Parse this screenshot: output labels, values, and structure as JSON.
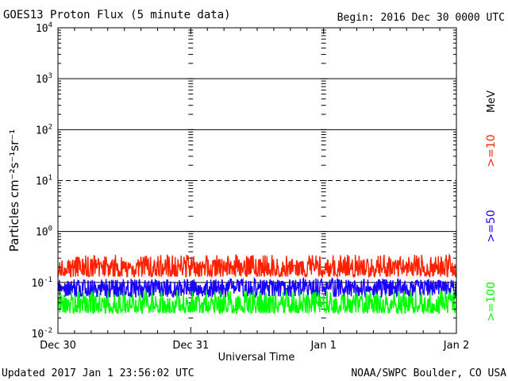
{
  "header": {
    "title": "GOES13 Proton Flux (5 minute data)",
    "begin": "Begin: 2016 Dec 30 0000 UTC"
  },
  "footer": {
    "updated": "Updated 2017 Jan  1 23:56:02 UTC",
    "credit": "NOAA/SWPC Boulder, CO USA"
  },
  "chart_data": {
    "type": "line",
    "title": "GOES13 Proton Flux (5 minute data)",
    "xlabel": "Universal Time",
    "ylabel": "Particles cm⁻²s⁻¹sr⁻¹",
    "y_scale": "log",
    "ylim": [
      0.01,
      10000
    ],
    "xlim": [
      "2016-12-30 00:00",
      "2017-01-02 00:00"
    ],
    "x_ticks": [
      "Dec 30",
      "Dec 31",
      "Jan 1",
      "Jan 2"
    ],
    "y_ticks": [
      {
        "base": "10",
        "exp": "-2",
        "value": 0.01
      },
      {
        "base": "10",
        "exp": "-1",
        "value": 0.1
      },
      {
        "base": "10",
        "exp": "0",
        "value": 1
      },
      {
        "base": "10",
        "exp": "1",
        "value": 10
      },
      {
        "base": "10",
        "exp": "2",
        "value": 100
      },
      {
        "base": "10",
        "exp": "3",
        "value": 1000
      },
      {
        "base": "10",
        "exp": "4",
        "value": 10000
      }
    ],
    "threshold_lines": [
      {
        "value": 10,
        "style": "dashed"
      },
      {
        "value": 1,
        "style": "solid"
      },
      {
        "value": 100,
        "style": "solid"
      },
      {
        "value": 1000,
        "style": "solid"
      }
    ],
    "units_label": "MeV",
    "series": [
      {
        "name": ">=10",
        "color": "#ff2000",
        "level_min": 0.13,
        "level_max": 0.35,
        "typical": 0.18
      },
      {
        "name": ">=50",
        "color": "#1a00ff",
        "level_min": 0.05,
        "level_max": 0.12,
        "typical": 0.075
      },
      {
        "name": ">=100",
        "color": "#00ff00",
        "level_min": 0.025,
        "level_max": 0.07,
        "typical": 0.035
      }
    ]
  }
}
